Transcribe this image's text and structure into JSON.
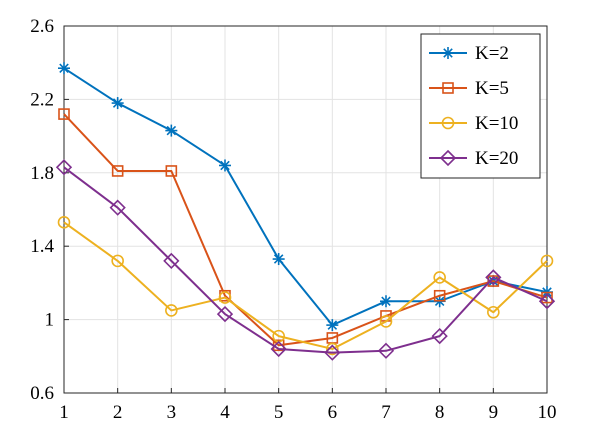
{
  "chart_data": {
    "type": "line",
    "title": "",
    "xlabel": "",
    "ylabel": "",
    "x": [
      1,
      2,
      3,
      4,
      5,
      6,
      7,
      8,
      9,
      10
    ],
    "xlim": [
      1,
      10
    ],
    "ylim": [
      0.6,
      2.6
    ],
    "xticks": [
      1,
      2,
      3,
      4,
      5,
      6,
      7,
      8,
      9,
      10
    ],
    "yticks": [
      0.6,
      1,
      1.4,
      1.8,
      2.2,
      2.6
    ],
    "ytick_labels": [
      "0.6",
      "1",
      "1.4",
      "1.8",
      "2.2",
      "2.6"
    ],
    "grid": true,
    "legend_position": "top-right",
    "series": [
      {
        "name": "K=2",
        "color": "#0072BD",
        "marker": "asterisk",
        "values": [
          2.37,
          2.18,
          2.03,
          1.84,
          1.33,
          0.97,
          1.1,
          1.1,
          1.21,
          1.15
        ]
      },
      {
        "name": "K=5",
        "color": "#D95319",
        "marker": "square",
        "values": [
          2.12,
          1.81,
          1.81,
          1.13,
          0.86,
          0.9,
          1.02,
          1.13,
          1.21,
          1.12
        ]
      },
      {
        "name": "K=10",
        "color": "#EDB120",
        "marker": "circle",
        "values": [
          1.53,
          1.32,
          1.05,
          1.12,
          0.91,
          0.84,
          0.99,
          1.23,
          1.04,
          1.32
        ]
      },
      {
        "name": "K=20",
        "color": "#7E2F8E",
        "marker": "diamond",
        "values": [
          1.83,
          1.61,
          1.32,
          1.03,
          0.84,
          0.82,
          0.83,
          0.91,
          1.23,
          1.1
        ]
      }
    ]
  }
}
